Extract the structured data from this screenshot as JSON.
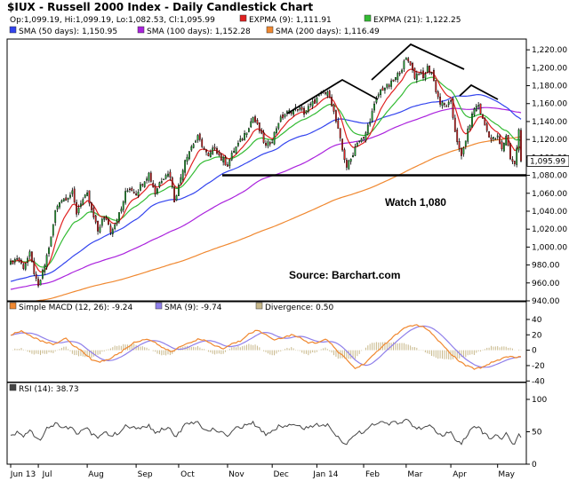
{
  "chart_data": {
    "type": "candlestick",
    "title": "$IUX - Russell 2000 Index - Daily Candlestick Chart",
    "ohlc_readout": "Op:1,099.19, Hi:1,099.19, Lo:1,082.53, Cl:1,095.99",
    "last_price_label": "1,095.99",
    "legend": [
      {
        "label": "EXPMA (9): 1,111.91",
        "color": "#e02020"
      },
      {
        "label": "EXPMA (21): 1,122.25",
        "color": "#33bb33"
      },
      {
        "label": "SMA (50 days): 1,150.95",
        "color": "#3344ee"
      },
      {
        "label": "SMA (100 days): 1,152.28",
        "color": "#aa22dd"
      },
      {
        "label": "SMA (200 days): 1,116.49",
        "color": "#f08830"
      }
    ],
    "price_axis": {
      "ticks": [
        "940.00",
        "960.00",
        "980.00",
        "1,000.00",
        "1,020.00",
        "1,040.00",
        "1,060.00",
        "1,080.00",
        "1,100.00",
        "1,120.00",
        "1,140.00",
        "1,160.00",
        "1,180.00",
        "1,200.00",
        "1,220.00"
      ],
      "ylim": [
        940,
        1232
      ]
    },
    "x_axis": {
      "month_labels": [
        "Jun 13",
        "Jul",
        "Aug",
        "Sep",
        "Oct",
        "Nov",
        "Dec",
        "Jan 14",
        "Feb",
        "Mar",
        "Apr",
        "May"
      ],
      "month_start_bar": [
        0,
        13,
        36,
        59,
        79,
        102,
        123,
        144,
        166,
        186,
        207,
        229
      ],
      "bar_count": 241
    },
    "price_keypoints": [
      [
        0,
        982
      ],
      [
        3,
        988
      ],
      [
        6,
        978
      ],
      [
        9,
        992
      ],
      [
        12,
        962
      ],
      [
        13,
        955
      ],
      [
        16,
        980
      ],
      [
        19,
        1010
      ],
      [
        21,
        1040
      ],
      [
        23,
        1052
      ],
      [
        26,
        1055
      ],
      [
        29,
        1060
      ],
      [
        31,
        1038
      ],
      [
        33,
        1050
      ],
      [
        36,
        1058
      ],
      [
        38,
        1040
      ],
      [
        41,
        1018
      ],
      [
        43,
        1030
      ],
      [
        45,
        1032
      ],
      [
        47,
        1018
      ],
      [
        49,
        1026
      ],
      [
        52,
        1042
      ],
      [
        54,
        1060
      ],
      [
        56,
        1066
      ],
      [
        59,
        1060
      ],
      [
        62,
        1072
      ],
      [
        65,
        1082
      ],
      [
        68,
        1060
      ],
      [
        70,
        1072
      ],
      [
        73,
        1082
      ],
      [
        75,
        1080
      ],
      [
        77,
        1052
      ],
      [
        79,
        1068
      ],
      [
        82,
        1098
      ],
      [
        85,
        1112
      ],
      [
        88,
        1122
      ],
      [
        90,
        1114
      ],
      [
        93,
        1100
      ],
      [
        96,
        1112
      ],
      [
        99,
        1098
      ],
      [
        102,
        1092
      ],
      [
        105,
        1108
      ],
      [
        108,
        1118
      ],
      [
        111,
        1130
      ],
      [
        114,
        1145
      ],
      [
        117,
        1130
      ],
      [
        120,
        1112
      ],
      [
        123,
        1120
      ],
      [
        126,
        1140
      ],
      [
        129,
        1148
      ],
      [
        132,
        1152
      ],
      [
        135,
        1155
      ],
      [
        138,
        1150
      ],
      [
        141,
        1158
      ],
      [
        144,
        1165
      ],
      [
        147,
        1172
      ],
      [
        150,
        1170
      ],
      [
        152,
        1150
      ],
      [
        154,
        1130
      ],
      [
        156,
        1108
      ],
      [
        158,
        1090
      ],
      [
        160,
        1098
      ],
      [
        163,
        1118
      ],
      [
        166,
        1120
      ],
      [
        168,
        1135
      ],
      [
        170,
        1150
      ],
      [
        172,
        1165
      ],
      [
        174,
        1175
      ],
      [
        176,
        1178
      ],
      [
        178,
        1180
      ],
      [
        181,
        1188
      ],
      [
        184,
        1200
      ],
      [
        186,
        1210
      ],
      [
        188,
        1205
      ],
      [
        190,
        1190
      ],
      [
        192,
        1195
      ],
      [
        194,
        1188
      ],
      [
        196,
        1200
      ],
      [
        198,
        1195
      ],
      [
        200,
        1175
      ],
      [
        202,
        1160
      ],
      [
        204,
        1158
      ],
      [
        207,
        1160
      ],
      [
        209,
        1130
      ],
      [
        211,
        1108
      ],
      [
        212,
        1100
      ],
      [
        214,
        1120
      ],
      [
        216,
        1138
      ],
      [
        218,
        1155
      ],
      [
        220,
        1158
      ],
      [
        222,
        1142
      ],
      [
        224,
        1130
      ],
      [
        226,
        1120
      ],
      [
        229,
        1122
      ],
      [
        231,
        1108
      ],
      [
        233,
        1125
      ],
      [
        235,
        1100
      ],
      [
        237,
        1092
      ],
      [
        239,
        1130
      ],
      [
        240,
        1096
      ]
    ],
    "annotations": [
      "Watch 1,080",
      "Source:  Barchart.com"
    ],
    "support_line": 1080,
    "macd": {
      "legend": [
        {
          "label": "Simple MACD (12, 26): -9.24",
          "color": "#f08830"
        },
        {
          "label": "SMA (9): -9.74",
          "color": "#8f7fea"
        },
        {
          "label": "Divergence: 0.50",
          "color": "#c8b88a"
        }
      ],
      "ticks": [
        "-40",
        "-20",
        "0",
        "20",
        "40"
      ],
      "ylim": [
        -42,
        48
      ],
      "keypoints": [
        [
          0,
          20
        ],
        [
          5,
          25
        ],
        [
          10,
          18
        ],
        [
          14,
          12
        ],
        [
          20,
          8
        ],
        [
          26,
          15
        ],
        [
          30,
          5
        ],
        [
          34,
          -2
        ],
        [
          38,
          -12
        ],
        [
          42,
          -15
        ],
        [
          46,
          -12
        ],
        [
          52,
          -2
        ],
        [
          58,
          10
        ],
        [
          64,
          15
        ],
        [
          68,
          10
        ],
        [
          72,
          2
        ],
        [
          76,
          -2
        ],
        [
          80,
          5
        ],
        [
          84,
          10
        ],
        [
          88,
          14
        ],
        [
          92,
          12
        ],
        [
          96,
          6
        ],
        [
          100,
          2
        ],
        [
          104,
          8
        ],
        [
          108,
          12
        ],
        [
          112,
          22
        ],
        [
          116,
          26
        ],
        [
          120,
          20
        ],
        [
          124,
          14
        ],
        [
          128,
          16
        ],
        [
          132,
          20
        ],
        [
          136,
          16
        ],
        [
          140,
          10
        ],
        [
          144,
          10
        ],
        [
          148,
          14
        ],
        [
          150,
          10
        ],
        [
          154,
          -2
        ],
        [
          158,
          -12
        ],
        [
          162,
          -24
        ],
        [
          166,
          -18
        ],
        [
          170,
          -8
        ],
        [
          176,
          8
        ],
        [
          182,
          22
        ],
        [
          186,
          30
        ],
        [
          190,
          33
        ],
        [
          194,
          30
        ],
        [
          198,
          22
        ],
        [
          202,
          10
        ],
        [
          206,
          -2
        ],
        [
          210,
          -12
        ],
        [
          214,
          -20
        ],
        [
          218,
          -24
        ],
        [
          222,
          -22
        ],
        [
          226,
          -16
        ],
        [
          230,
          -12
        ],
        [
          234,
          -8
        ],
        [
          238,
          -9
        ],
        [
          240,
          -9.24
        ]
      ]
    },
    "rsi": {
      "legend": [
        {
          "label": "RSI (14): 38.73",
          "color": "#444444"
        }
      ],
      "ticks": [
        "0",
        "50",
        "100"
      ],
      "ylim": [
        0,
        100
      ],
      "keypoints": [
        [
          0,
          45
        ],
        [
          3,
          48
        ],
        [
          6,
          44
        ],
        [
          9,
          52
        ],
        [
          12,
          42
        ],
        [
          14,
          38
        ],
        [
          16,
          52
        ],
        [
          19,
          60
        ],
        [
          21,
          62
        ],
        [
          23,
          60
        ],
        [
          26,
          58
        ],
        [
          29,
          55
        ],
        [
          31,
          46
        ],
        [
          33,
          52
        ],
        [
          36,
          56
        ],
        [
          38,
          48
        ],
        [
          41,
          42
        ],
        [
          43,
          48
        ],
        [
          45,
          50
        ],
        [
          47,
          42
        ],
        [
          49,
          46
        ],
        [
          52,
          52
        ],
        [
          54,
          58
        ],
        [
          56,
          58
        ],
        [
          59,
          54
        ],
        [
          62,
          57
        ],
        [
          65,
          60
        ],
        [
          68,
          46
        ],
        [
          70,
          52
        ],
        [
          73,
          56
        ],
        [
          75,
          54
        ],
        [
          77,
          42
        ],
        [
          79,
          48
        ],
        [
          82,
          60
        ],
        [
          85,
          63
        ],
        [
          88,
          64
        ],
        [
          90,
          58
        ],
        [
          93,
          50
        ],
        [
          96,
          55
        ],
        [
          99,
          48
        ],
        [
          102,
          45
        ],
        [
          105,
          54
        ],
        [
          108,
          57
        ],
        [
          111,
          60
        ],
        [
          114,
          63
        ],
        [
          117,
          54
        ],
        [
          120,
          46
        ],
        [
          123,
          52
        ],
        [
          126,
          58
        ],
        [
          129,
          60
        ],
        [
          132,
          60
        ],
        [
          135,
          60
        ],
        [
          138,
          56
        ],
        [
          141,
          58
        ],
        [
          144,
          60
        ],
        [
          147,
          62
        ],
        [
          150,
          60
        ],
        [
          152,
          50
        ],
        [
          154,
          42
        ],
        [
          156,
          36
        ],
        [
          158,
          32
        ],
        [
          160,
          38
        ],
        [
          163,
          50
        ],
        [
          166,
          50
        ],
        [
          168,
          56
        ],
        [
          170,
          60
        ],
        [
          172,
          62
        ],
        [
          174,
          64
        ],
        [
          176,
          63
        ],
        [
          178,
          62
        ],
        [
          181,
          64
        ],
        [
          184,
          66
        ],
        [
          186,
          68
        ],
        [
          188,
          64
        ],
        [
          190,
          56
        ],
        [
          192,
          58
        ],
        [
          194,
          55
        ],
        [
          196,
          60
        ],
        [
          198,
          57
        ],
        [
          200,
          48
        ],
        [
          202,
          44
        ],
        [
          204,
          46
        ],
        [
          207,
          48
        ],
        [
          209,
          38
        ],
        [
          211,
          32
        ],
        [
          212,
          30
        ],
        [
          214,
          42
        ],
        [
          216,
          52
        ],
        [
          218,
          58
        ],
        [
          220,
          58
        ],
        [
          222,
          48
        ],
        [
          224,
          44
        ],
        [
          226,
          40
        ],
        [
          229,
          44
        ],
        [
          231,
          36
        ],
        [
          233,
          48
        ],
        [
          235,
          36
        ],
        [
          237,
          32
        ],
        [
          239,
          44
        ],
        [
          240,
          38.73
        ]
      ]
    }
  }
}
